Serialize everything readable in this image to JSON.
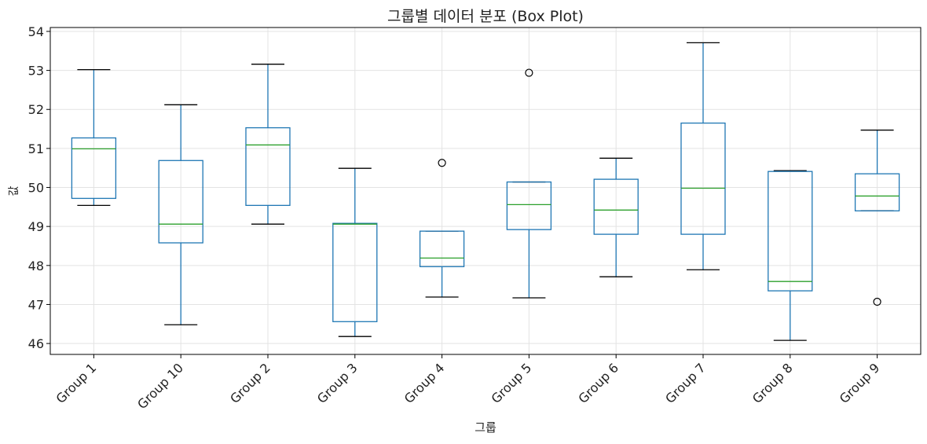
{
  "chart_data": {
    "type": "box",
    "title": "그룹별 데이터 분포 (Box Plot)",
    "xlabel": "그룹",
    "ylabel": "값",
    "ylim": [
      45.72,
      54.1
    ],
    "yticks": [
      46,
      47,
      48,
      49,
      50,
      51,
      52,
      53,
      54
    ],
    "grid": true,
    "colors": {
      "box": "#1f77b4",
      "median": "#2ca02c",
      "whisker_cap": "#000000"
    },
    "groups": [
      {
        "name": "Group 1",
        "whislo": 49.54,
        "q1": 49.72,
        "med": 50.99,
        "q3": 51.27,
        "whishi": 53.02,
        "fliers": []
      },
      {
        "name": "Group 10",
        "whislo": 46.48,
        "q1": 48.58,
        "med": 49.06,
        "q3": 50.69,
        "whishi": 52.12,
        "fliers": []
      },
      {
        "name": "Group 2",
        "whislo": 49.06,
        "q1": 49.54,
        "med": 51.09,
        "q3": 51.53,
        "whishi": 53.16,
        "fliers": []
      },
      {
        "name": "Group 3",
        "whislo": 46.18,
        "q1": 46.56,
        "med": 49.06,
        "q3": 49.08,
        "whishi": 50.49,
        "fliers": []
      },
      {
        "name": "Group 4",
        "whislo": 47.19,
        "q1": 47.97,
        "med": 48.19,
        "q3": 48.88,
        "whishi": 48.88,
        "fliers": [
          50.63
        ]
      },
      {
        "name": "Group 5",
        "whislo": 47.17,
        "q1": 48.92,
        "med": 49.56,
        "q3": 50.14,
        "whishi": 50.14,
        "fliers": [
          52.94
        ]
      },
      {
        "name": "Group 6",
        "whislo": 47.71,
        "q1": 48.8,
        "med": 49.42,
        "q3": 50.21,
        "whishi": 50.75,
        "fliers": []
      },
      {
        "name": "Group 7",
        "whislo": 47.89,
        "q1": 48.8,
        "med": 49.98,
        "q3": 51.65,
        "whishi": 53.71,
        "fliers": []
      },
      {
        "name": "Group 8",
        "whislo": 46.08,
        "q1": 47.35,
        "med": 47.59,
        "q3": 50.41,
        "whishi": 50.43,
        "fliers": []
      },
      {
        "name": "Group 9",
        "whislo": 49.4,
        "q1": 49.4,
        "med": 49.78,
        "q3": 50.35,
        "whishi": 51.47,
        "fliers": [
          47.07
        ]
      }
    ]
  }
}
